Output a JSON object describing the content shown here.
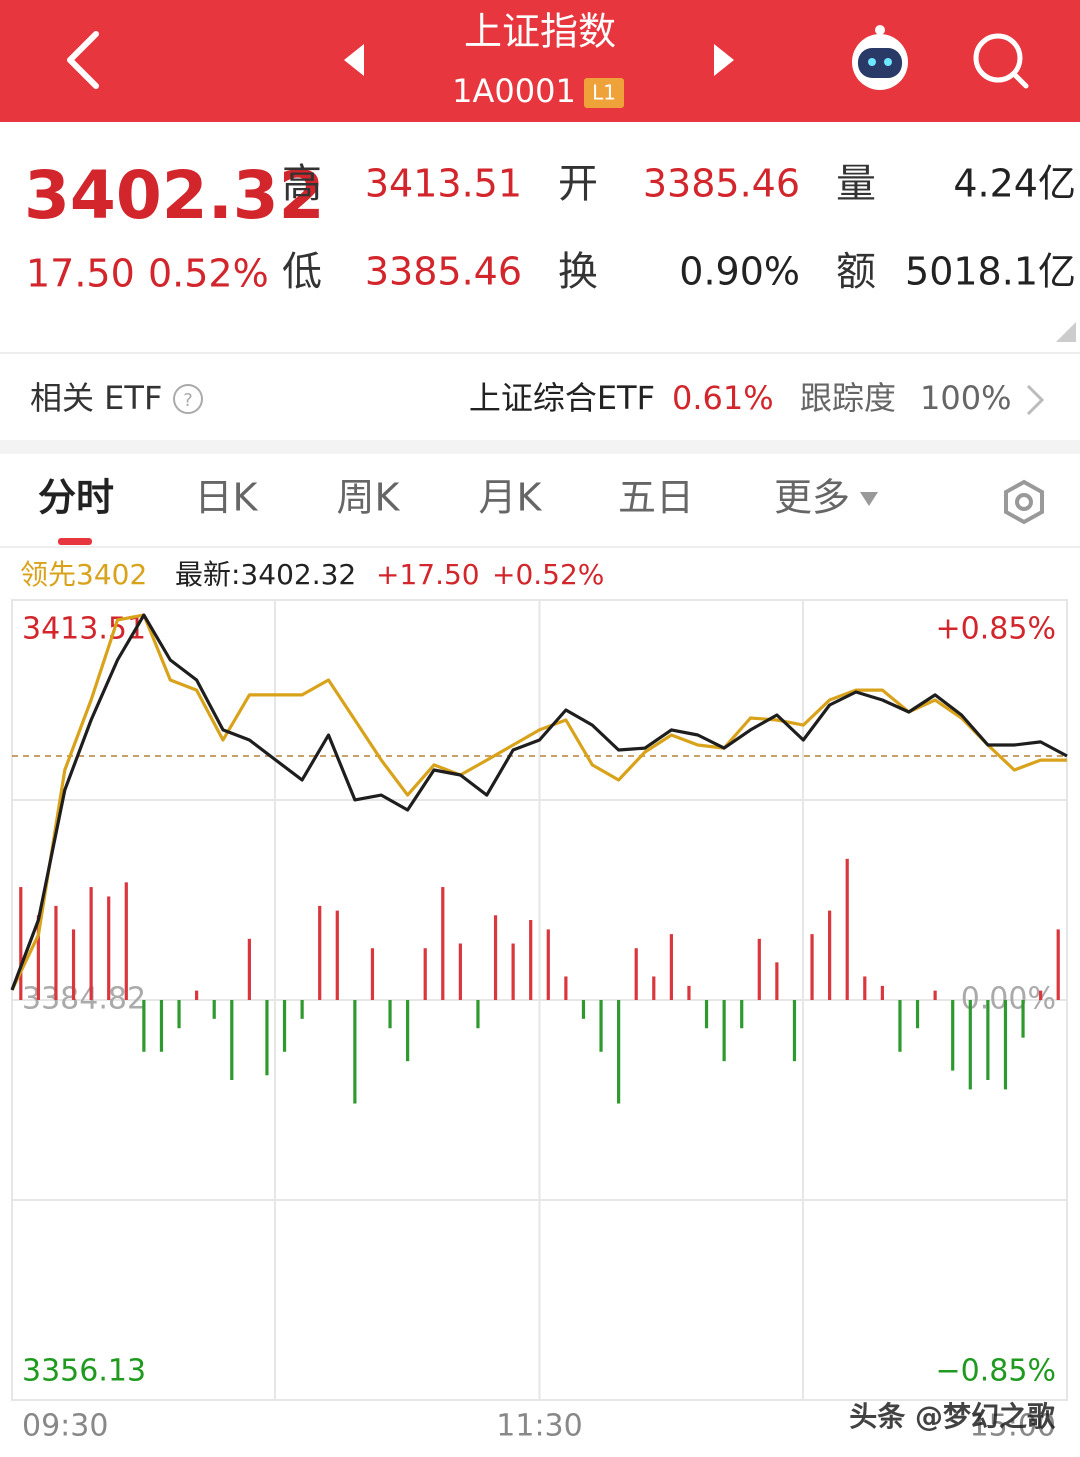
{
  "header": {
    "title": "上证指数",
    "code": "1A0001",
    "badge": "L1"
  },
  "quote": {
    "price": "3402.32",
    "change": "17.50",
    "change_pct": "0.52%",
    "stats": [
      {
        "label": "高",
        "value": "3413.51"
      },
      {
        "label": "开",
        "value": "3385.46"
      },
      {
        "label": "量",
        "value": "4.24亿"
      },
      {
        "label": "低",
        "value": "3385.46"
      },
      {
        "label": "换",
        "value": "0.90%"
      },
      {
        "label": "额",
        "value": "5018.1亿"
      }
    ]
  },
  "etf": {
    "label": "相关 ETF",
    "name": "上证综合ETF",
    "pct": "0.61%",
    "track_label": "跟踪度",
    "track": "100%"
  },
  "tabs": [
    "分时",
    "日K",
    "周K",
    "月K",
    "五日",
    "更多"
  ],
  "watermark": "头条 @梦幻之歌",
  "chart_data": {
    "type": "line",
    "info_labels": [
      "最新:3402.32",
      "+17.50",
      "+0.52%"
    ],
    "x": [
      0,
      6,
      12,
      18,
      24,
      30,
      36,
      42,
      48,
      54,
      60,
      66,
      72,
      78,
      84,
      90,
      96,
      102,
      108,
      114,
      120,
      126,
      132,
      138,
      144,
      150,
      156,
      162,
      168,
      174,
      180,
      186,
      192,
      198,
      204,
      210,
      216,
      222,
      228,
      234,
      240
    ],
    "series": [
      {
        "color": "#1e1e1e",
        "values": [
          3385.54,
          3390.56,
          3399.88,
          3404.9,
          3409.21,
          3412.43,
          3409.21,
          3407.77,
          3404.19,
          3403.47,
          3402.03,
          3400.6,
          3403.83,
          3399.17,
          3399.52,
          3398.45,
          3401.32,
          3400.96,
          3399.52,
          3402.75,
          3403.47,
          3405.62,
          3404.54,
          3402.75,
          3402.89,
          3404.19,
          3403.83,
          3402.89,
          3404.19,
          3405.26,
          3403.47,
          3405.98,
          3406.91,
          3406.34,
          3405.48,
          3406.7,
          3405.26,
          3403.11,
          3403.11,
          3403.33,
          3402.32
        ]
      },
      {
        "name": "领先3402",
        "color": "#d9a21b",
        "values": [
          3385.54,
          3389.48,
          3401.32,
          3406.34,
          3412.08,
          3412.43,
          3407.77,
          3407.05,
          3403.47,
          3406.7,
          3406.7,
          3406.7,
          3407.77,
          3404.9,
          3402.03,
          3399.52,
          3401.68,
          3400.96,
          3402.03,
          3403.11,
          3404.19,
          3404.9,
          3401.68,
          3400.6,
          3402.61,
          3403.83,
          3403.11,
          3402.89,
          3405.05,
          3404.9,
          3404.54,
          3406.34,
          3407.05,
          3407.05,
          3405.48,
          3406.34,
          3405.05,
          3403.11,
          3401.32,
          3402.03,
          3402.03
        ]
      }
    ],
    "bars": {
      "axis": "y2",
      "up_color": "#d9363e",
      "down_color": "#2e9a2e",
      "x": [
        2,
        6,
        10,
        14,
        18,
        22,
        26,
        30,
        34,
        38,
        42,
        46,
        50,
        54,
        58,
        62,
        66,
        70,
        74,
        78,
        82,
        86,
        90,
        94,
        98,
        102,
        106,
        110,
        114,
        118,
        122,
        126,
        130,
        134,
        138,
        142,
        146,
        150,
        154,
        158,
        162,
        166,
        170,
        174,
        178,
        182,
        186,
        190,
        194,
        198,
        202,
        206,
        210,
        214,
        218,
        222,
        226,
        230,
        234,
        238
      ],
      "values": [
        0.24,
        0.18,
        0.2,
        0.15,
        0.24,
        0.22,
        0.25,
        -0.11,
        -0.11,
        -0.06,
        0.02,
        -0.04,
        -0.17,
        0.13,
        -0.16,
        -0.11,
        -0.04,
        0.2,
        0.19,
        -0.22,
        0.11,
        -0.06,
        -0.13,
        0.11,
        0.24,
        0.12,
        -0.06,
        0.18,
        0.12,
        0.17,
        0.15,
        0.05,
        -0.04,
        -0.11,
        -0.22,
        0.11,
        0.05,
        0.14,
        0.03,
        -0.06,
        -0.13,
        -0.06,
        0.13,
        0.08,
        -0.13,
        0.14,
        0.19,
        0.3,
        0.05,
        0.03,
        -0.11,
        -0.06,
        0.02,
        -0.15,
        -0.19,
        -0.17,
        -0.19,
        -0.08,
        0.02,
        0.15
      ]
    },
    "xlim": [
      0,
      240
    ],
    "xticks": [
      {
        "value": 0,
        "label": "09:30"
      },
      {
        "value": 120,
        "label": "11:30"
      },
      {
        "value": 240,
        "label": "15:00"
      }
    ],
    "ylim": [
      3356.13,
      3413.51
    ],
    "yticks": [
      3413.51,
      3384.82,
      3356.13
    ],
    "y2lim": [
      -0.85,
      0.85
    ],
    "y2ticks": [
      {
        "value": 0.85,
        "label": "+0.85%"
      },
      {
        "value": 0,
        "label": "0.00%"
      },
      {
        "value": -0.85,
        "label": "−0.85%"
      }
    ],
    "grid": true
  }
}
